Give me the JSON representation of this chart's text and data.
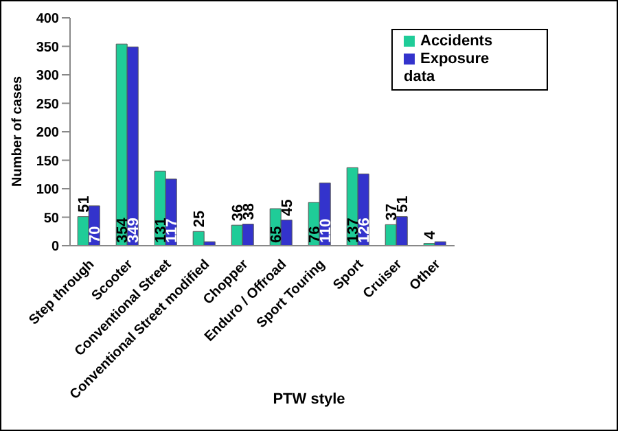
{
  "chart_data": {
    "type": "bar",
    "xlabel": "PTW style",
    "ylabel": "Number of cases",
    "categories": [
      "Step through",
      "Scooter",
      "Conventional Street",
      "Conventional Street modified",
      "Chopper",
      "Enduro / Offroad",
      "Sport Touring",
      "Sport",
      "Cruiser",
      "Other"
    ],
    "series": [
      {
        "name": "Accidents",
        "color": "#1fcc98",
        "values": [
          51,
          354,
          131,
          25,
          36,
          65,
          76,
          137,
          37,
          4
        ],
        "value_labels": [
          "51",
          "354",
          "131",
          "25",
          "36",
          "65",
          "76",
          "137",
          "37",
          "4"
        ]
      },
      {
        "name": "Exposure data",
        "color": "#3333cc",
        "values": [
          70,
          349,
          117,
          7,
          38,
          45,
          110,
          126,
          51,
          7
        ],
        "value_labels": [
          "70",
          "349",
          "117",
          null,
          "38",
          "45",
          "110",
          "126",
          "51",
          null
        ]
      }
    ],
    "ylim": [
      0,
      400
    ],
    "yticks": [
      0,
      50,
      100,
      150,
      200,
      250,
      300,
      350,
      400
    ],
    "grid": false,
    "legend": "top right"
  }
}
